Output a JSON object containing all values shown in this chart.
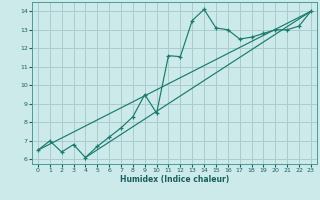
{
  "xlabel": "Humidex (Indice chaleur)",
  "bg_color": "#cceaea",
  "line_color": "#1a7a6e",
  "grid_color": "#aacccc",
  "xlim": [
    -0.5,
    23.5
  ],
  "ylim": [
    5.75,
    14.5
  ],
  "xticks": [
    0,
    1,
    2,
    3,
    4,
    5,
    6,
    7,
    8,
    9,
    10,
    11,
    12,
    13,
    14,
    15,
    16,
    17,
    18,
    19,
    20,
    21,
    22,
    23
  ],
  "yticks": [
    6,
    7,
    8,
    9,
    10,
    11,
    12,
    13,
    14
  ],
  "curve1_x": [
    0,
    1,
    2,
    3,
    4,
    5,
    6,
    7,
    8,
    9,
    10,
    11,
    12,
    13,
    14,
    15,
    16,
    17,
    18,
    19,
    20,
    21,
    22,
    23
  ],
  "curve1_y": [
    6.5,
    7.0,
    6.4,
    6.8,
    6.1,
    6.7,
    7.2,
    7.7,
    8.3,
    9.5,
    8.5,
    11.6,
    11.55,
    13.5,
    14.1,
    13.1,
    13.0,
    12.5,
    12.6,
    12.8,
    13.0,
    13.0,
    13.2,
    14.0
  ],
  "line1_x": [
    0,
    23
  ],
  "line1_y": [
    6.5,
    14.0
  ],
  "line2_x": [
    4,
    23
  ],
  "line2_y": [
    6.1,
    14.0
  ]
}
